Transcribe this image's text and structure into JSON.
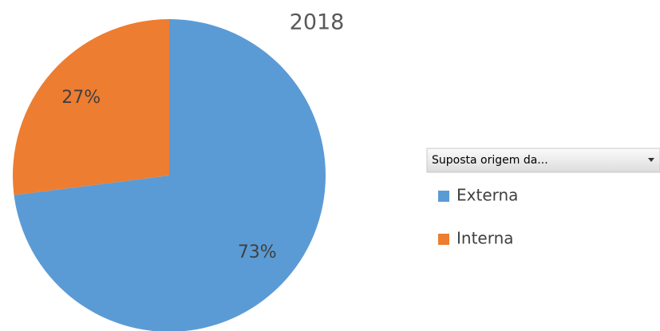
{
  "chart_data": {
    "type": "pie",
    "title": "2018",
    "legend_title": "Suposta origem da...",
    "categories": [
      "Externa",
      "Interna"
    ],
    "values": [
      73,
      27
    ],
    "value_labels": [
      "73%",
      "27%"
    ],
    "colors": [
      "#5b9bd5",
      "#ed7d31"
    ],
    "legend": "right"
  }
}
